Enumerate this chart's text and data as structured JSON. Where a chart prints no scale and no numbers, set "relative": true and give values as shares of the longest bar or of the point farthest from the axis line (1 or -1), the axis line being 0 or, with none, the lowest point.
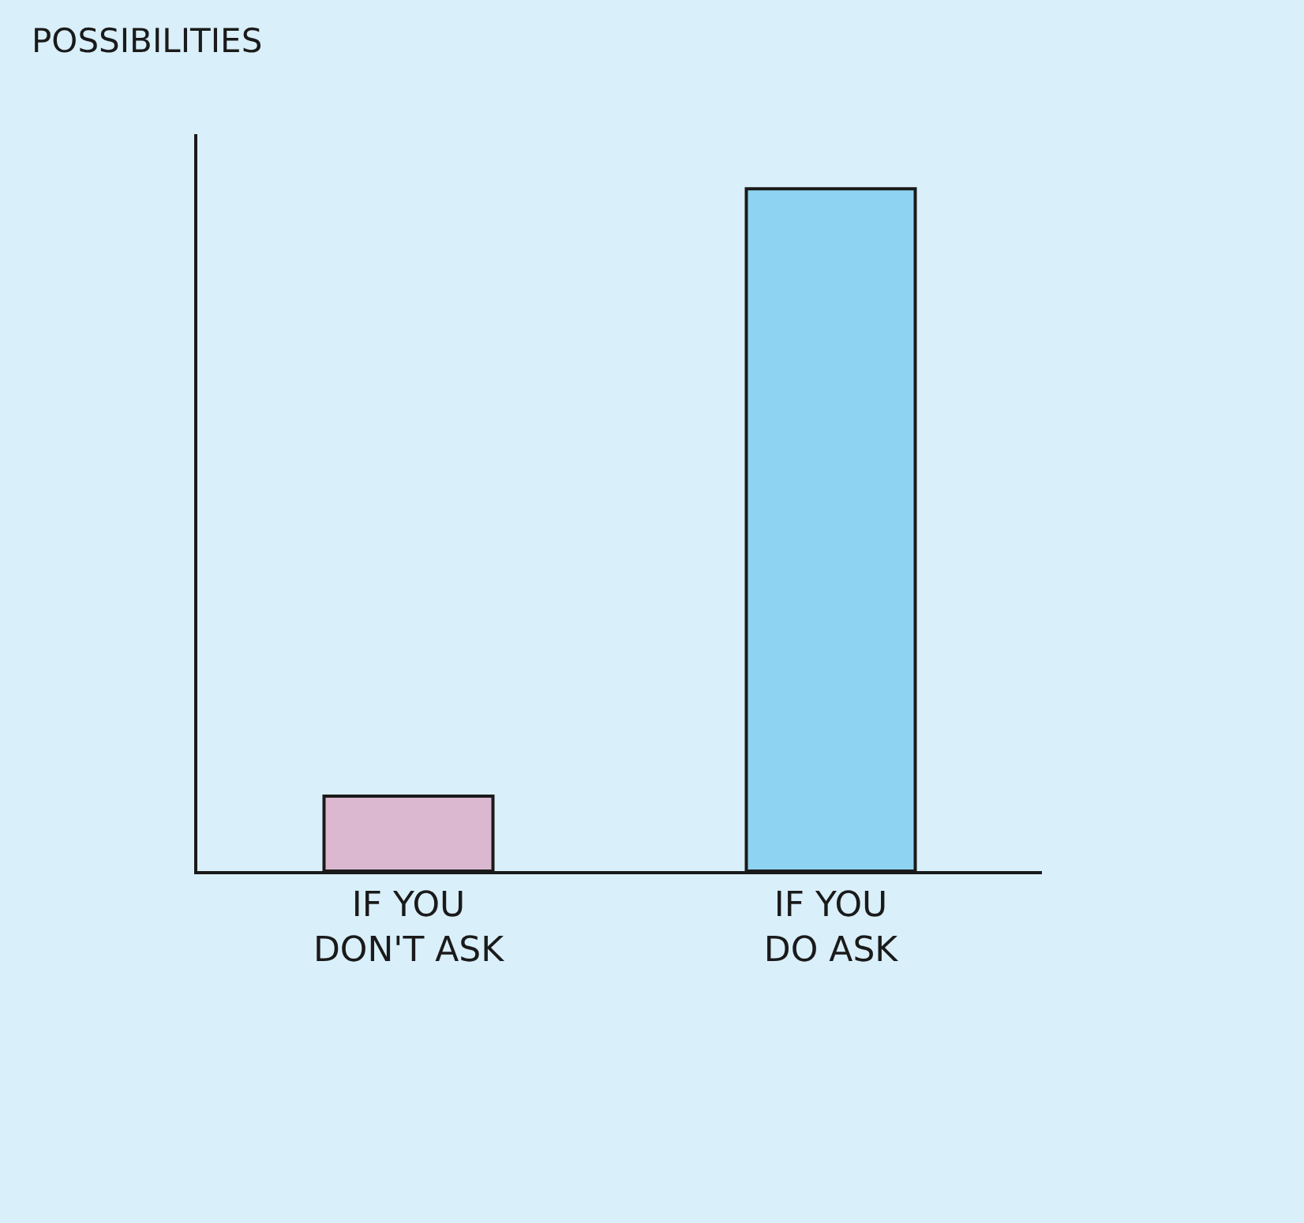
{
  "chart_data": {
    "type": "bar",
    "annotations": [
      "POSSIBILITIES"
    ],
    "relative": true,
    "categories": [
      "IF YOU\nDON'T ASK",
      "IF YOU\nDO ASK"
    ],
    "values": [
      0.11,
      1
    ],
    "colors": [
      "#dbb8d0",
      "#8fd3f2"
    ],
    "grid": false
  }
}
